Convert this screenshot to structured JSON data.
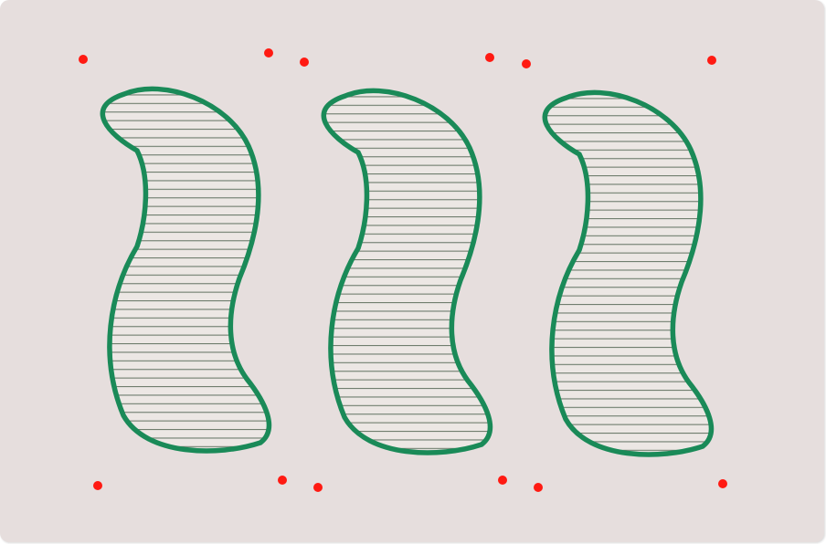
{
  "scene": {
    "background_color": "#e6dedd",
    "shape_count": 3,
    "shape_fill": "#ece7e4",
    "shape_outline_color": "#1a8a58",
    "hatch_line_color": "#6f7d6e",
    "hatch_orientation": "horizontal",
    "marker_color": "#ff0000",
    "marker_count": 12
  }
}
